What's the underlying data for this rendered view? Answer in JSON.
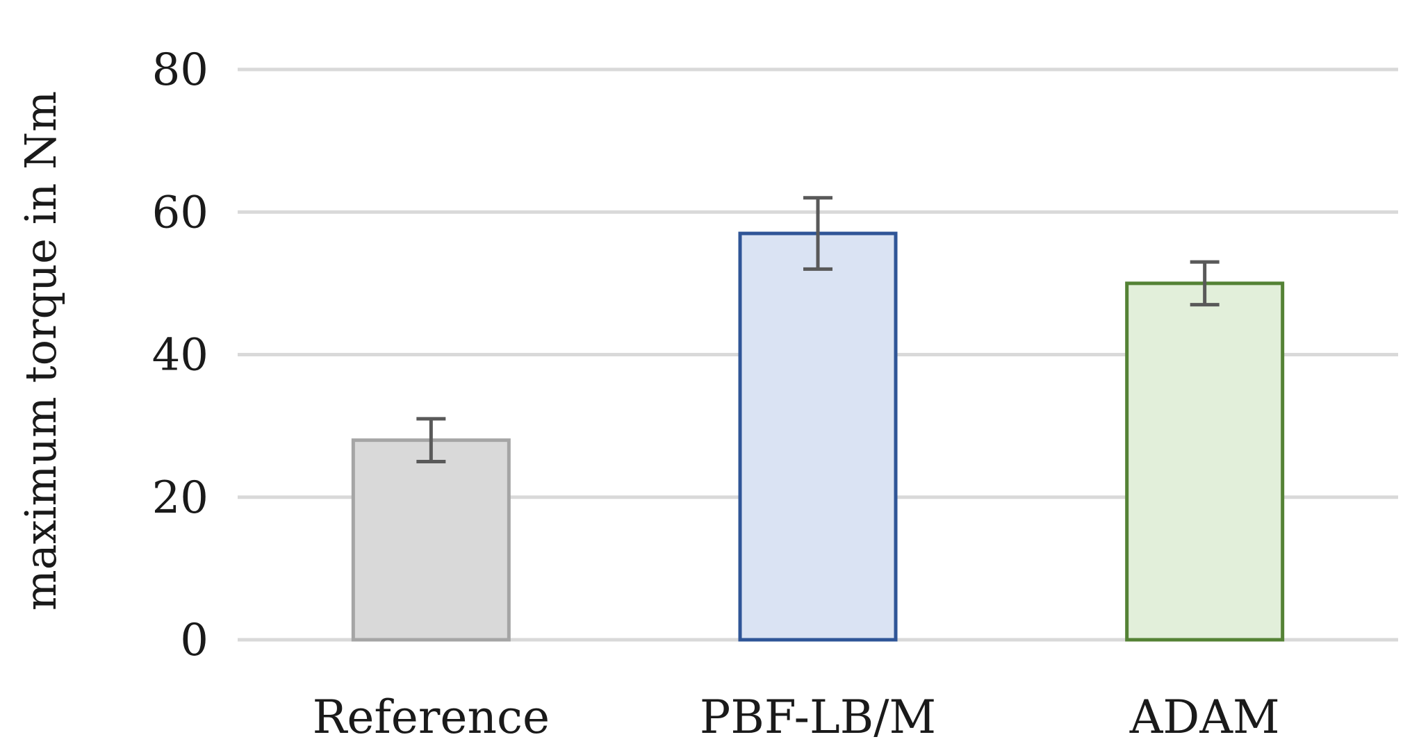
{
  "chart_data": {
    "type": "bar",
    "title": "",
    "xlabel": "",
    "ylabel": "maximum torque in Nm",
    "ylim": [
      0,
      80
    ],
    "yticks": [
      0,
      20,
      40,
      60,
      80
    ],
    "grid": true,
    "categories": [
      "Reference",
      "PBF-LB/M",
      "ADAM"
    ],
    "values": [
      28,
      57,
      50
    ],
    "errors": [
      3,
      5,
      3
    ],
    "fill_colors": [
      "#d9d9d9",
      "#dae3f3",
      "#e2efda"
    ],
    "edge_colors": [
      "#a5a5a5",
      "#2f5597",
      "#548235"
    ],
    "error_color": "#595959",
    "grid_color": "#d9d9d9"
  }
}
